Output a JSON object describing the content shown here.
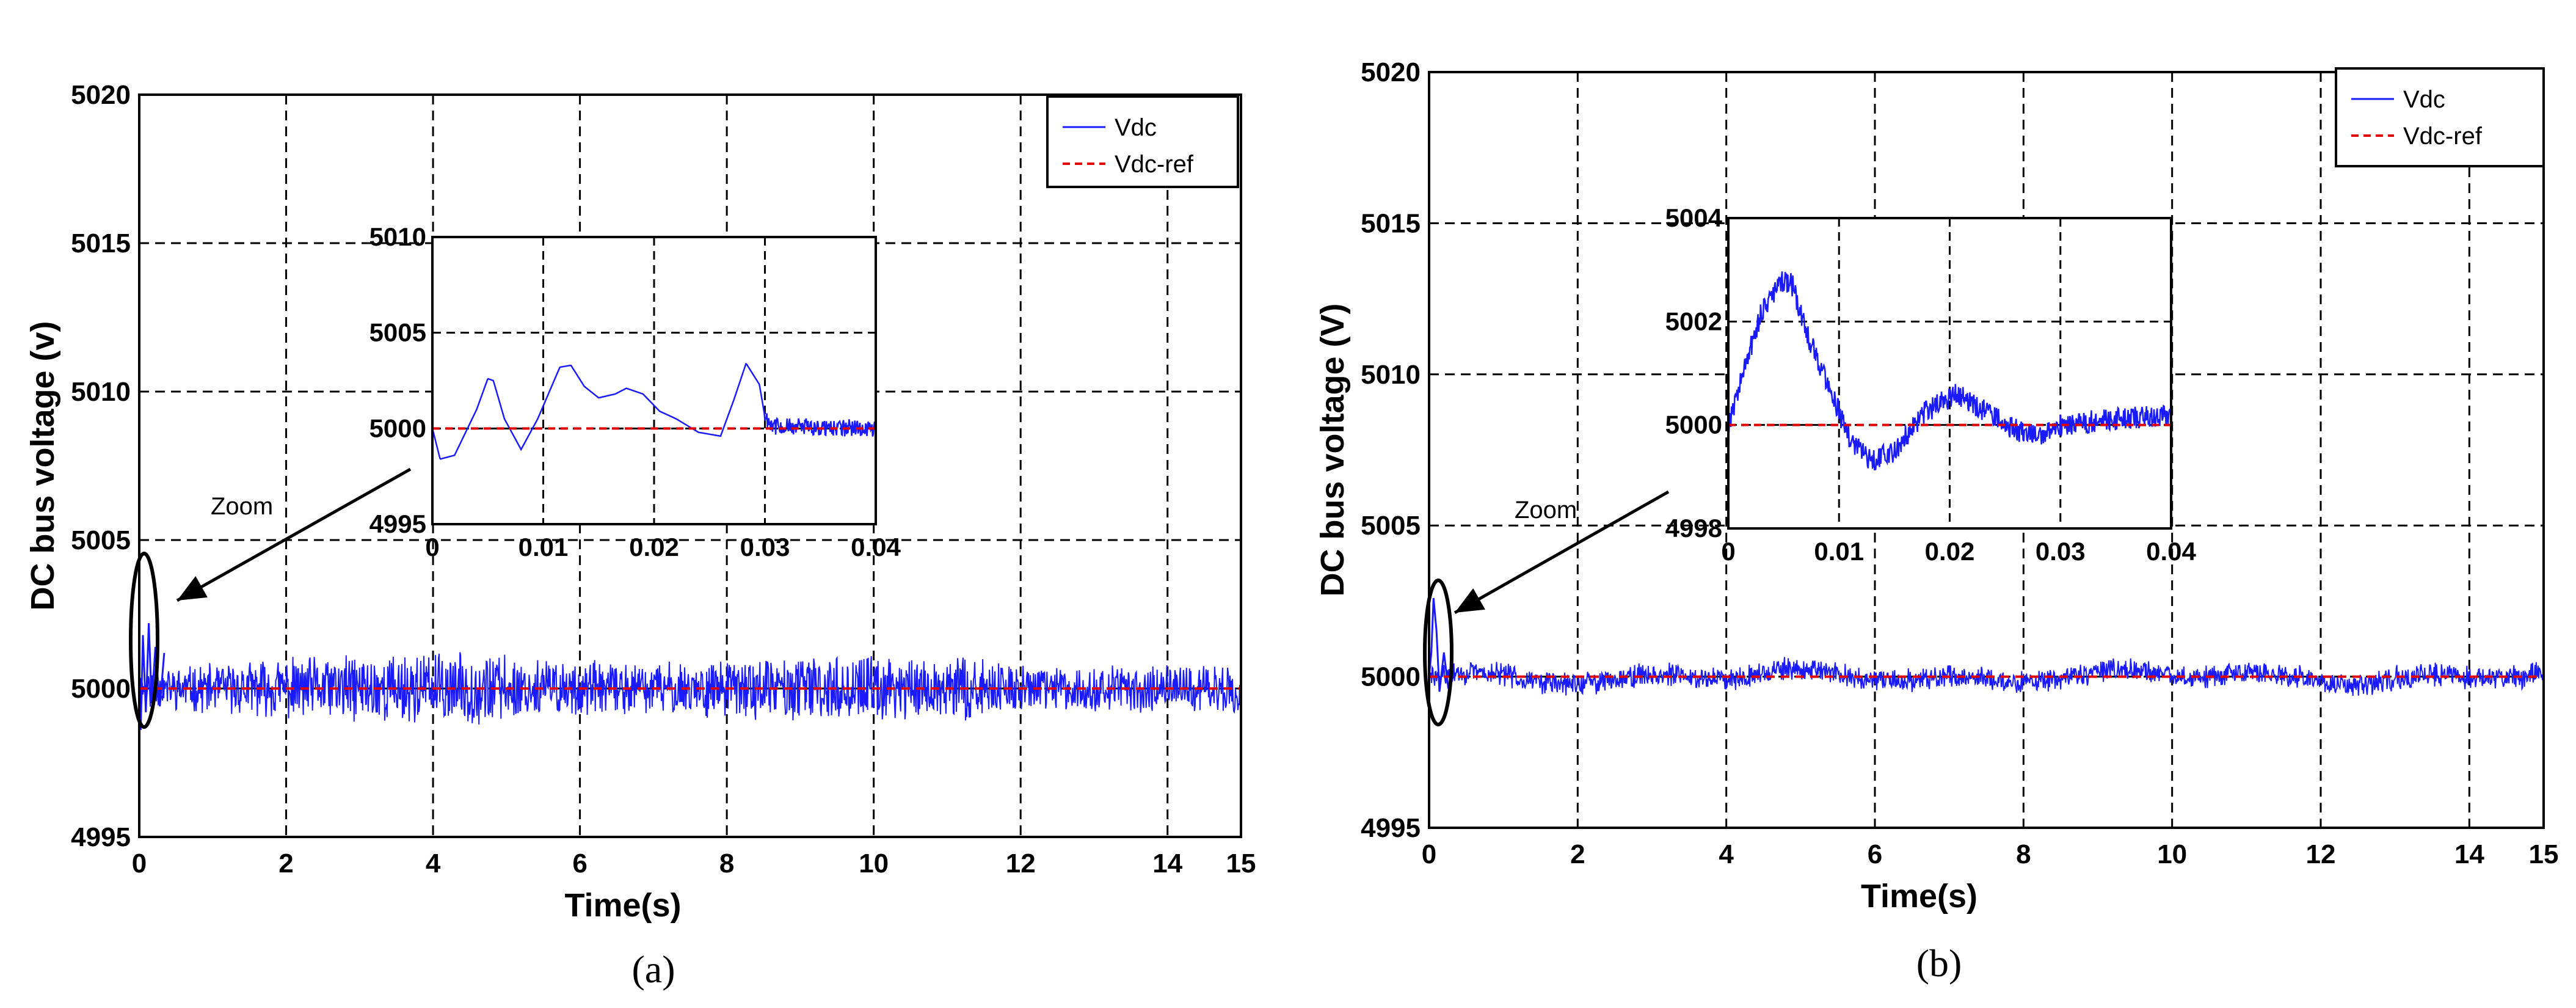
{
  "figure": {
    "colors": {
      "vdc": "#1a1aff",
      "vdc_ref": "#e00000",
      "grid": "#000000",
      "frame": "#000000"
    }
  },
  "chart_data": [
    {
      "id": "a",
      "type": "line",
      "caption": "(a)",
      "xlabel": "Time(s)",
      "ylabel": "DC bus voltage (v)",
      "xlim": [
        0,
        15
      ],
      "ylim": [
        4995,
        5020
      ],
      "xticks": [
        "0",
        "2",
        "4",
        "6",
        "8",
        "10",
        "12",
        "14",
        "15"
      ],
      "xtick_values": [
        0,
        2,
        4,
        6,
        8,
        10,
        12,
        14,
        15
      ],
      "yticks": [
        "4995",
        "5000",
        "5005",
        "5010",
        "5015",
        "5020"
      ],
      "ytick_values": [
        4995,
        5000,
        5005,
        5010,
        5015,
        5020
      ],
      "grid": true,
      "legend": {
        "placement": "top-right",
        "entries": [
          "Vdc",
          "Vdc-ref"
        ]
      },
      "annotation": "Zoom",
      "series": [
        {
          "name": "Vdc",
          "style": "solid",
          "noise_amplitude": 0.5,
          "envelope": [
            [
              0,
              5000.5
            ],
            [
              2.6,
              5001.0
            ],
            [
              4.6,
              5001.1
            ],
            [
              6.5,
              5000.7
            ],
            [
              8.5,
              5000.9
            ],
            [
              10.8,
              5001.0
            ],
            [
              12.5,
              5000.6
            ],
            [
              15,
              5000.7
            ]
          ]
        },
        {
          "name": "Vdc-ref",
          "style": "dashed",
          "x": [
            0,
            15
          ],
          "y": [
            5000,
            5000
          ]
        }
      ],
      "inset": {
        "xlim": [
          0,
          0.04
        ],
        "ylim": [
          4995,
          5010
        ],
        "xticks": [
          "0",
          "0.01",
          "0.02",
          "0.03",
          "0.04"
        ],
        "xtick_values": [
          0,
          0.01,
          0.02,
          0.03,
          0.04
        ],
        "yticks": [
          "4995",
          "5000",
          "5005",
          "5010"
        ],
        "ytick_values": [
          4995,
          5000,
          5005,
          5010
        ],
        "vdc": {
          "x": [
            0,
            0.0007,
            0.002,
            0.004,
            0.005,
            0.0055,
            0.0065,
            0.008,
            0.0095,
            0.0115,
            0.0125,
            0.0137,
            0.015,
            0.0165,
            0.0175,
            0.019,
            0.0205,
            0.022,
            0.024,
            0.026,
            0.0272,
            0.0283,
            0.0295,
            0.03,
            0.031,
            0.04
          ],
          "y": [
            5000,
            4998.4,
            4998.6,
            5001,
            5002.6,
            5002.5,
            5000.5,
            4998.9,
            5000.5,
            5003.2,
            5003.3,
            5002.2,
            5001.6,
            5001.8,
            5002.1,
            5001.8,
            5000.9,
            5000.5,
            4999.8,
            4999.6,
            5001.5,
            5003.4,
            5002.3,
            5000.6,
            5000.1,
            5000
          ],
          "noise_from": 0.03,
          "noise_amplitude": 0.45
        },
        "vdc_ref": {
          "x": [
            0,
            0.04
          ],
          "y": [
            5000,
            5000
          ]
        }
      }
    },
    {
      "id": "b",
      "type": "line",
      "caption": "(b)",
      "xlabel": "Time(s)",
      "ylabel": "DC bus voltage (V)",
      "xlim": [
        0,
        15
      ],
      "ylim": [
        4995,
        5020
      ],
      "xticks": [
        "0",
        "2",
        "4",
        "6",
        "8",
        "10",
        "12",
        "14",
        "15"
      ],
      "xtick_values": [
        0,
        2,
        4,
        6,
        8,
        10,
        12,
        14,
        15
      ],
      "yticks": [
        "4995",
        "5000",
        "5005",
        "5010",
        "5015",
        "5020"
      ],
      "ytick_values": [
        4995,
        5000,
        5005,
        5010,
        5015,
        5020
      ],
      "grid": true,
      "legend": {
        "placement": "top-right",
        "entries": [
          "Vdc",
          "Vdc-ref"
        ]
      },
      "annotation": "Zoom",
      "series": [
        {
          "name": "Vdc",
          "style": "solid",
          "noise_amplitude": 0.35,
          "drift_amplitude": 0.25,
          "envelope": [
            [
              0,
              5000.3
            ],
            [
              15,
              5000.3
            ]
          ]
        },
        {
          "name": "Vdc-ref",
          "style": "dashed",
          "x": [
            0,
            15
          ],
          "y": [
            5000,
            5000
          ]
        }
      ],
      "inset": {
        "xlim": [
          0,
          0.04
        ],
        "ylim": [
          4998,
          5004
        ],
        "xticks": [
          "0",
          "0.01",
          "0.02",
          "0.03",
          "0.04"
        ],
        "xtick_values": [
          0,
          0.01,
          0.02,
          0.03,
          0.04
        ],
        "yticks": [
          "4998",
          "5000",
          "5002",
          "5004"
        ],
        "ytick_values": [
          4998,
          5000,
          5002,
          5004
        ],
        "vdc": {
          "x": [
            0,
            0.0012,
            0.003,
            0.005,
            0.0058,
            0.007,
            0.009,
            0.011,
            0.013,
            0.015,
            0.0175,
            0.0205,
            0.023,
            0.026,
            0.028,
            0.03,
            0.034,
            0.04
          ],
          "y": [
            5000,
            5000.9,
            5002.2,
            5002.8,
            5002.7,
            5001.8,
            5000.8,
            4999.7,
            4999.3,
            4999.5,
            5000.2,
            5000.6,
            5000.3,
            4999.9,
            4999.8,
            5000.0,
            5000.1,
            5000.2
          ],
          "noise_from": 0.0,
          "noise_amplitude": 0.22
        },
        "vdc_ref": {
          "x": [
            0,
            0.04
          ],
          "y": [
            5000,
            5000
          ]
        }
      }
    }
  ]
}
